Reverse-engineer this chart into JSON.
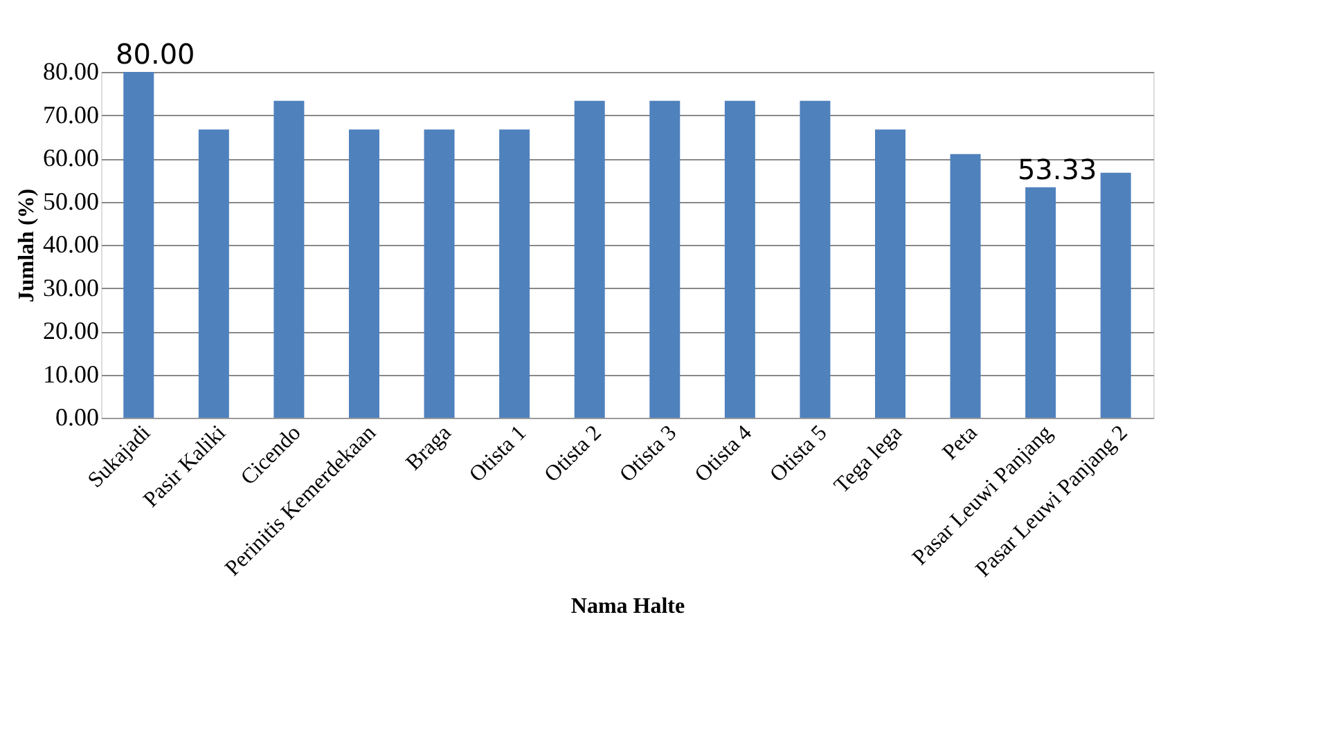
{
  "chart_data": {
    "type": "bar",
    "categories": [
      "Sukajadi",
      "Pasir Kaliki",
      "Cicendo",
      "Perinitis Kemerdekaan",
      "Braga",
      "Otista 1",
      "Otista 2",
      "Otista 3",
      "Otista 4",
      "Otista 5",
      "Tega lega",
      "Peta",
      "Pasar Leuwi Panjang",
      "Pasar Leuwi Panjang 2"
    ],
    "values": [
      80.0,
      66.67,
      73.33,
      66.67,
      66.67,
      66.67,
      73.33,
      73.33,
      73.33,
      73.33,
      66.67,
      61,
      53.33,
      56.67
    ],
    "value_labels": [
      "80.00",
      null,
      null,
      null,
      null,
      null,
      null,
      null,
      null,
      null,
      null,
      null,
      "53.33",
      null
    ],
    "color": "#4f81bd",
    "xlabel": "Nama Halte",
    "ylabel": "Jumlah (%)",
    "ylim": [
      0,
      80
    ],
    "yticks": [
      {
        "value": 0,
        "label": "0.00"
      },
      {
        "value": 10,
        "label": "10.00"
      },
      {
        "value": 20,
        "label": "20.00"
      },
      {
        "value": 30,
        "label": "30.00"
      },
      {
        "value": 40,
        "label": "40.00"
      },
      {
        "value": 50,
        "label": "50.00"
      },
      {
        "value": 60,
        "label": "60.00"
      },
      {
        "value": 70,
        "label": "70.00"
      },
      {
        "value": 80,
        "label": "80.00"
      }
    ],
    "grid": "y"
  }
}
